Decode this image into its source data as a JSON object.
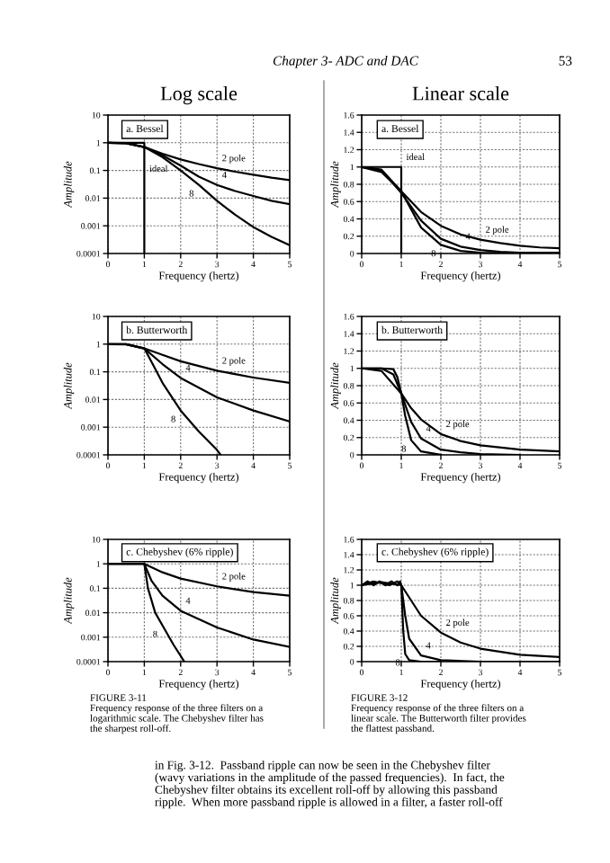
{
  "chart_data": [
    {
      "type": "line",
      "title": "Log scale",
      "subtitle": "a. Bessel",
      "xlabel": "Frequency (hertz)",
      "ylabel": "Amplitude",
      "log": true,
      "grid": true,
      "line_style": "solid",
      "marker": "none",
      "xlim": [
        0,
        5
      ],
      "xticks": [
        0,
        1,
        2,
        3,
        4,
        5
      ],
      "ylim": [
        0.0001,
        10
      ],
      "yticks": [
        0.0001,
        0.001,
        0.01,
        0.1,
        1,
        10
      ],
      "series": [
        {
          "color": "#000000",
          "x": [
            0,
            0.5,
            1,
            1.5,
            2,
            2.5,
            3,
            3.5,
            4,
            4.5,
            5
          ],
          "values": [
            1,
            0.95,
            0.7,
            0.4,
            0.25,
            0.17,
            0.12,
            0.09,
            0.07,
            0.055,
            0.045
          ]
        },
        {
          "color": "#000000",
          "x": [
            0,
            0.5,
            1,
            1.5,
            2,
            2.5,
            3,
            3.5,
            4,
            4.5,
            5
          ],
          "values": [
            1,
            0.96,
            0.7,
            0.35,
            0.15,
            0.06,
            0.03,
            0.018,
            0.012,
            0.008,
            0.006
          ]
        },
        {
          "color": "#000000",
          "x": [
            0,
            0.5,
            1,
            1.5,
            2,
            2.5,
            3,
            3.5,
            4,
            4.5,
            5
          ],
          "values": [
            1,
            0.97,
            0.7,
            0.3,
            0.1,
            0.03,
            0.008,
            0.0025,
            0.0009,
            0.0004,
            0.0002
          ]
        },
        {
          "color": "#000000",
          "x": [
            0,
            1,
            1
          ],
          "values": [
            1,
            1,
            0.0001
          ]
        }
      ],
      "annotations": [
        "Chapter 3- ADC and DAC",
        "53",
        {
          "text": "2 pole",
          "x": 3,
          "y": 0.12
        },
        {
          "text": "4",
          "x": 3,
          "y": 0.03
        },
        {
          "text": "8",
          "x": 2.5,
          "y": 0.03
        },
        {
          "text": "ideal",
          "x": 1,
          "y": 0.05
        }
      ]
    },
    {
      "type": "line",
      "title": "Linear scale",
      "subtitle": "a. Bessel",
      "xlabel": "Frequency (hertz)",
      "ylabel": "Amplitude",
      "grid": true,
      "line_style": "solid",
      "marker": "none",
      "xlim": [
        0,
        5
      ],
      "xticks": [
        0,
        1,
        2,
        3,
        4,
        5
      ],
      "ylim": [
        0,
        1.6
      ],
      "yticks": [
        0,
        0.2,
        0.4,
        0.6,
        0.8,
        1,
        1.2,
        1.4,
        1.6
      ],
      "series": [
        {
          "color": "#000000",
          "x": [
            0,
            0.5,
            1,
            1.5,
            2,
            2.5,
            3,
            3.5,
            4,
            4.5,
            5
          ],
          "values": [
            1,
            0.94,
            0.72,
            0.48,
            0.32,
            0.22,
            0.16,
            0.12,
            0.09,
            0.07,
            0.06
          ]
        },
        {
          "color": "#000000",
          "x": [
            0,
            0.5,
            1,
            1.5,
            2,
            2.5,
            3,
            3.5,
            4,
            5
          ],
          "values": [
            1,
            0.96,
            0.7,
            0.38,
            0.17,
            0.08,
            0.04,
            0.02,
            0.01,
            0.01
          ]
        },
        {
          "color": "#000000",
          "x": [
            0,
            0.5,
            1,
            1.5,
            2,
            2.5,
            3,
            4
          ],
          "values": [
            1,
            0.97,
            0.72,
            0.3,
            0.1,
            0.03,
            0.01,
            0
          ]
        },
        {
          "color": "#000000",
          "x": [
            0,
            1,
            1
          ],
          "values": [
            1,
            1,
            0
          ]
        }
      ],
      "annotations": [
        {
          "text": "ideal",
          "x": 1,
          "y": 1
        },
        {
          "text": "2 pole",
          "x": 3,
          "y": 0.16
        },
        {
          "text": "4",
          "x": 2.5,
          "y": 0.08
        },
        {
          "text": "8",
          "x": 2,
          "y": 0.1
        }
      ]
    },
    {
      "type": "line",
      "subtitle": "b. Butterworth",
      "xlabel": "Frequency (hertz)",
      "ylabel": "Amplitude",
      "log": true,
      "grid": true,
      "line_style": "solid",
      "marker": "none",
      "xlim": [
        0,
        5
      ],
      "xticks": [
        0,
        1,
        2,
        3,
        4,
        5
      ],
      "ylim": [
        0.0001,
        10
      ],
      "yticks": [
        0.0001,
        0.001,
        0.01,
        0.1,
        1,
        10
      ],
      "series": [
        {
          "color": "#000000",
          "x": [
            0,
            0.5,
            1,
            1.5,
            2,
            3,
            4,
            5
          ],
          "values": [
            1,
            0.97,
            0.7,
            0.41,
            0.24,
            0.11,
            0.062,
            0.04
          ]
        },
        {
          "color": "#000000",
          "x": [
            0,
            0.5,
            1,
            1.5,
            2,
            3,
            4,
            5
          ],
          "values": [
            1,
            0.99,
            0.7,
            0.19,
            0.06,
            0.012,
            0.004,
            0.0016
          ]
        },
        {
          "color": "#000000",
          "x": [
            0,
            0.5,
            1,
            1.25,
            1.5,
            2,
            2.5,
            3,
            3.1
          ],
          "values": [
            1,
            0.99,
            0.7,
            0.17,
            0.04,
            0.004,
            0.0007,
            0.00015,
            0.0001
          ]
        }
      ],
      "annotations": [
        {
          "text": "2 pole",
          "x": 3,
          "y": 0.11
        },
        {
          "text": "4",
          "x": 2,
          "y": 0.06
        },
        {
          "text": "8",
          "x": 2,
          "y": 0.004
        }
      ]
    },
    {
      "type": "line",
      "subtitle": "b. Butterworth",
      "xlabel": "Frequency (hertz)",
      "ylabel": "Amplitude",
      "grid": true,
      "line_style": "solid",
      "marker": "none",
      "xlim": [
        0,
        5
      ],
      "xticks": [
        0,
        1,
        2,
        3,
        4,
        5
      ],
      "ylim": [
        0,
        1.6
      ],
      "yticks": [
        0,
        0.2,
        0.4,
        0.6,
        0.8,
        1,
        1.2,
        1.4,
        1.6
      ],
      "series": [
        {
          "color": "#000000",
          "x": [
            0,
            0.5,
            1,
            1.25,
            1.5,
            2,
            2.5,
            3,
            4,
            5
          ],
          "values": [
            1,
            0.97,
            0.71,
            0.54,
            0.41,
            0.24,
            0.16,
            0.11,
            0.06,
            0.04
          ]
        },
        {
          "color": "#000000",
          "x": [
            0,
            0.5,
            0.8,
            1,
            1.25,
            1.5,
            2,
            2.5,
            3,
            4
          ],
          "values": [
            1,
            1,
            0.93,
            0.71,
            0.38,
            0.19,
            0.06,
            0.03,
            0.01,
            0
          ]
        },
        {
          "color": "#000000",
          "x": [
            0,
            0.5,
            0.8,
            0.9,
            1,
            1.1,
            1.25,
            1.5,
            2
          ],
          "values": [
            1,
            1,
            0.99,
            0.9,
            0.71,
            0.45,
            0.17,
            0.04,
            0
          ]
        }
      ],
      "annotations": [
        {
          "text": "2 pole",
          "x": 2,
          "y": 0.24
        },
        {
          "text": "4",
          "x": 1.5,
          "y": 0.19
        },
        {
          "text": "8",
          "x": 1.25,
          "y": 0.17
        }
      ]
    },
    {
      "type": "line",
      "subtitle": "c. Chebyshev (6% ripple)",
      "xlabel": "Frequency (hertz)",
      "ylabel": "Amplitude",
      "log": true,
      "grid": true,
      "line_style": "solid",
      "marker": "none",
      "xlim": [
        0,
        5
      ],
      "xticks": [
        0,
        1,
        2,
        3,
        4,
        5
      ],
      "ylim": [
        0.0001,
        10
      ],
      "yticks": [
        0.0001,
        0.001,
        0.01,
        0.1,
        1,
        10
      ],
      "series": [
        {
          "color": "#000000",
          "x": [
            0,
            1,
            1.5,
            2,
            3,
            4,
            5
          ],
          "values": [
            1,
            1,
            0.45,
            0.25,
            0.12,
            0.07,
            0.05
          ]
        },
        {
          "color": "#000000",
          "x": [
            0,
            1,
            1.2,
            1.5,
            2,
            3,
            4,
            5
          ],
          "values": [
            1,
            1,
            0.2,
            0.05,
            0.012,
            0.0025,
            0.0008,
            0.0004
          ]
        },
        {
          "color": "#000000",
          "x": [
            0,
            1,
            1.1,
            1.3,
            1.5,
            1.8,
            2.1
          ],
          "values": [
            1,
            1,
            0.1,
            0.01,
            0.003,
            0.0005,
            0.0001
          ]
        }
      ],
      "annotations": [
        "FIGURE 3-11\nFrequency response of the three filters on a\nlogarithmic scale. The Chebyshev filter has\nthe sharpest roll-off.",
        {
          "text": "2 pole",
          "x": 3,
          "y": 0.12
        },
        {
          "text": "4",
          "x": 2,
          "y": 0.012
        },
        {
          "text": "8",
          "x": 1.5,
          "y": 0.003
        }
      ]
    },
    {
      "type": "line",
      "subtitle": "c. Chebyshev (6% ripple)",
      "xlabel": "Frequency (hertz)",
      "ylabel": "Amplitude",
      "grid": true,
      "line_style": "solid",
      "marker": "none",
      "xlim": [
        0,
        5
      ],
      "xticks": [
        0,
        1,
        2,
        3,
        4,
        5
      ],
      "ylim": [
        0,
        1.6
      ],
      "yticks": [
        0,
        0.2,
        0.4,
        0.6,
        0.8,
        1,
        1.2,
        1.4,
        1.6
      ],
      "series": [
        {
          "color": "#000000",
          "x": [
            0,
            0.5,
            1,
            1.25,
            1.5,
            2,
            2.5,
            3,
            4,
            5
          ],
          "values": [
            1,
            1.04,
            1,
            0.8,
            0.6,
            0.38,
            0.25,
            0.17,
            0.09,
            0.06
          ]
        },
        {
          "color": "#000000",
          "x": [
            0,
            0.3,
            0.7,
            0.9,
            1,
            1.1,
            1.2,
            1.5,
            2,
            3,
            5
          ],
          "values": [
            1,
            1.05,
            1,
            1.05,
            1,
            0.6,
            0.3,
            0.08,
            0.02,
            0,
            0
          ]
        },
        {
          "color": "#000000",
          "x": [
            0,
            0.15,
            0.3,
            0.45,
            0.6,
            0.75,
            0.9,
            0.97,
            1,
            1.05,
            1.1,
            1.2,
            1.5,
            2
          ],
          "values": [
            1,
            1.05,
            1,
            1.05,
            1,
            1.05,
            1,
            1.05,
            1,
            0.4,
            0.1,
            0.02,
            0,
            0
          ]
        }
      ],
      "annotations": [
        "FIGURE 3-12\nFrequency response of the three filters on a\nlinear scale. The Butterworth filter provides\nthe flattest passband.",
        "in Fig. 3-12.  Passband ripple can now be seen in the Chebyshev filter\n(wavy variations in the amplitude of the passed frequencies).  In fact, the\nChebyshev filter obtains its excellent roll-off by allowing this passband\nripple.  When more passband ripple is allowed in a filter, a faster roll-off",
        {
          "text": "2 pole",
          "x": 2,
          "y": 0.38
        },
        {
          "text": "4",
          "x": 1.5,
          "y": 0.08
        },
        {
          "text": "8",
          "x": 1.1,
          "y": 0.1
        }
      ]
    }
  ]
}
